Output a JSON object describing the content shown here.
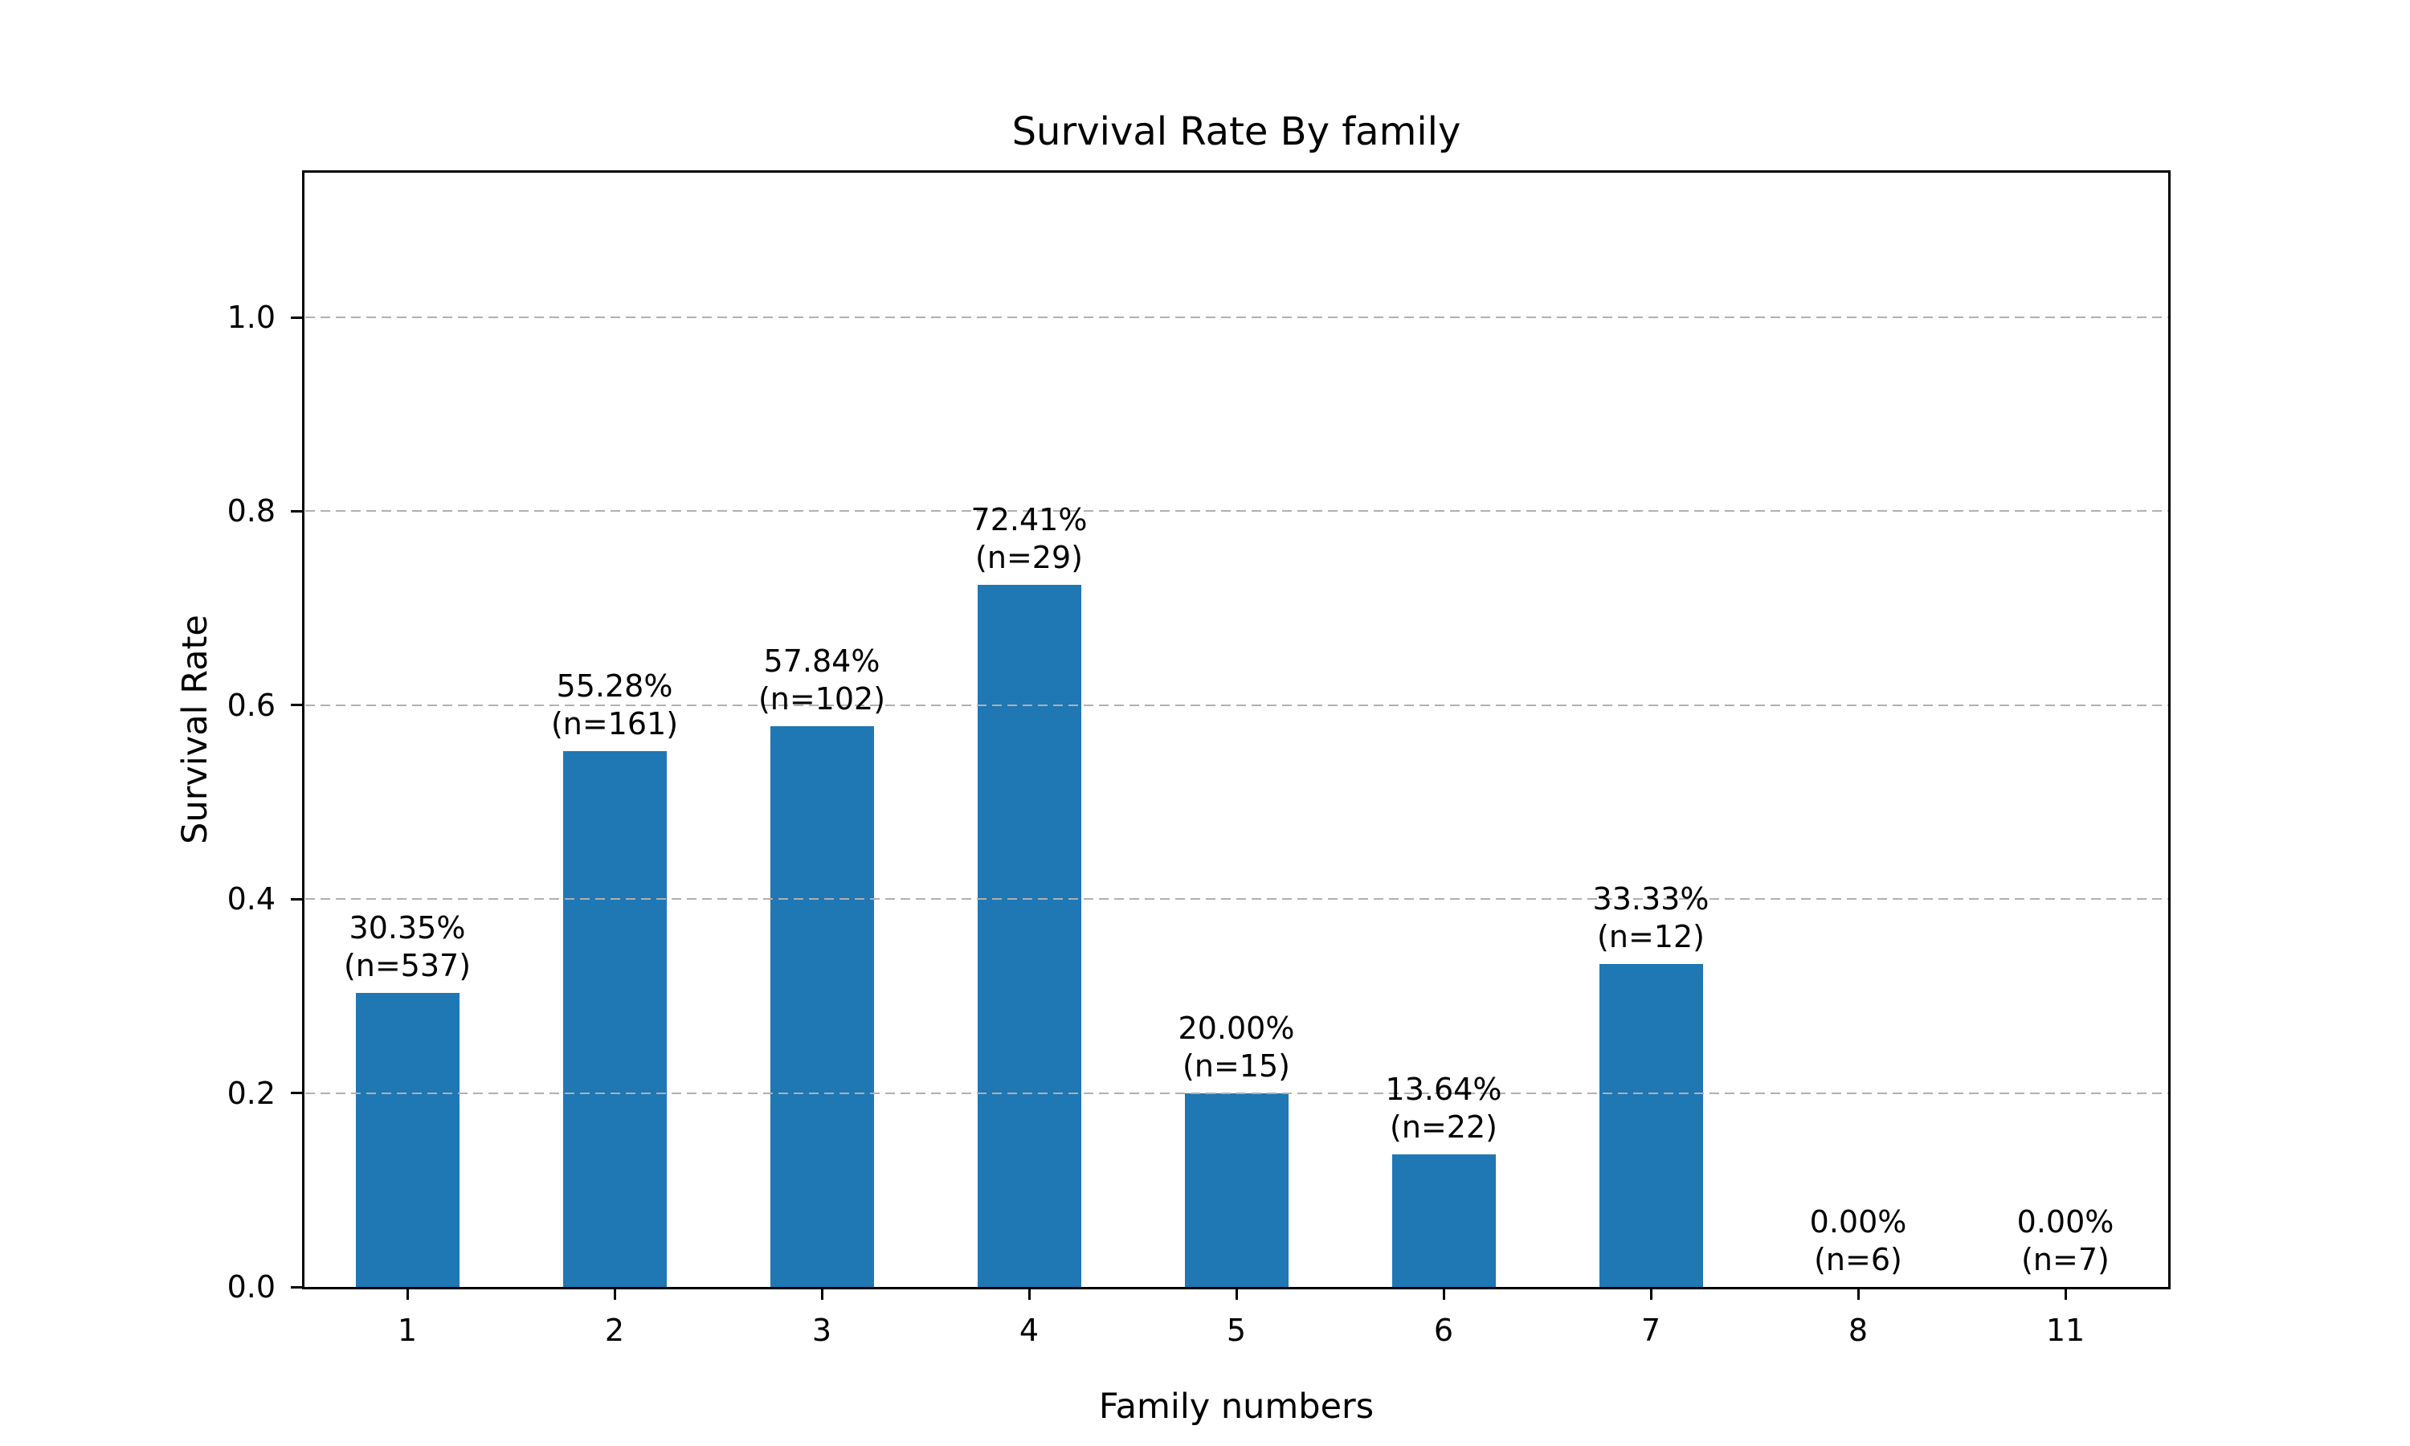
{
  "figure": {
    "title": "Survival Rate By family",
    "xlabel": "Family numbers",
    "ylabel": "Survival Rate"
  },
  "chart_data": {
    "type": "bar",
    "title": "Survival Rate By family",
    "xlabel": "Family numbers",
    "ylabel": "Survival Rate",
    "categories": [
      "1",
      "2",
      "3",
      "4",
      "5",
      "6",
      "7",
      "8",
      "11"
    ],
    "values": [
      0.3035,
      0.5528,
      0.5784,
      0.7241,
      0.2,
      0.1364,
      0.3333,
      0.0,
      0.0
    ],
    "counts": [
      537,
      161,
      102,
      29,
      15,
      22,
      12,
      6,
      7
    ],
    "pct_labels": [
      "30.35%",
      "55.28%",
      "57.84%",
      "72.41%",
      "20.00%",
      "13.64%",
      "33.33%",
      "0.00%",
      "0.00%"
    ],
    "n_labels": [
      "(n=537)",
      "(n=161)",
      "(n=102)",
      "(n=29)",
      "(n=15)",
      "(n=22)",
      "(n=12)",
      "(n=6)",
      "(n=7)"
    ],
    "ytick_values": [
      0.0,
      0.2,
      0.4,
      0.6,
      0.8,
      1.0
    ],
    "ytick_labels": [
      "0.0",
      "0.2",
      "0.4",
      "0.6",
      "0.8",
      "1.0"
    ],
    "ylim": [
      0,
      1.15
    ],
    "grid": "horizontal-dashed",
    "grid_above_bars": true,
    "legend_position": "none",
    "colors": {
      "bar": "#1f77b4",
      "grid": "#b0b0b0",
      "spine": "#000000",
      "text": "#000000",
      "background": "#ffffff"
    }
  }
}
